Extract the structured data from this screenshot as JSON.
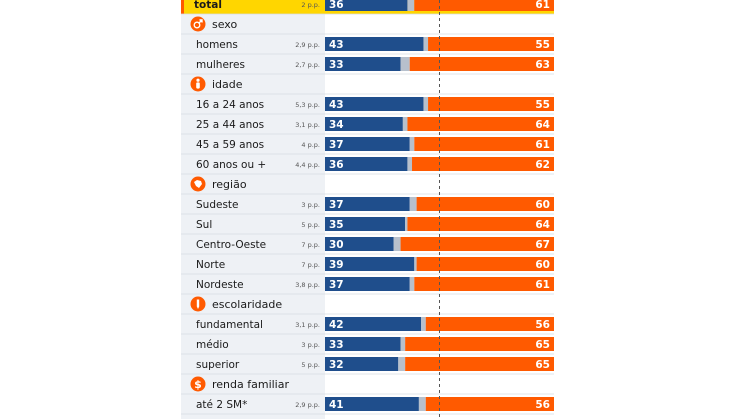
{
  "colors": {
    "left_series": "#1f4e8c",
    "right_series": "#ff5a00",
    "neither": "#b7c0cc",
    "highlight": "#ffd600",
    "icon": "#ff5a00",
    "row_bg": "#eef1f5",
    "plot_bg": "#ffffff"
  },
  "chart_data": {
    "type": "bar",
    "stacked": true,
    "orientation": "horizontal",
    "xlim": [
      0,
      100
    ],
    "reference_line": 50,
    "series_order": [
      "left",
      "neither",
      "right"
    ],
    "rows": [
      {
        "kind": "data",
        "label": "total",
        "margin": "2 p.p.",
        "left": 36,
        "right": 61,
        "highlight": true
      },
      {
        "kind": "header",
        "label": "sexo",
        "icon": "gender-icon"
      },
      {
        "kind": "data",
        "label": "homens",
        "margin": "2,9 p.p.",
        "left": 43,
        "right": 55
      },
      {
        "kind": "data",
        "label": "mulheres",
        "margin": "2,7 p.p.",
        "left": 33,
        "right": 63
      },
      {
        "kind": "header",
        "label": "idade",
        "icon": "person-icon"
      },
      {
        "kind": "data",
        "label": "16 a 24 anos",
        "margin": "5,3 p.p.",
        "left": 43,
        "right": 55
      },
      {
        "kind": "data",
        "label": "25 a 44 anos",
        "margin": "3,1 p.p.",
        "left": 34,
        "right": 64
      },
      {
        "kind": "data",
        "label": "45 a 59 anos",
        "margin": "4 p.p.",
        "left": 37,
        "right": 61
      },
      {
        "kind": "data",
        "label": "60 anos ou +",
        "margin": "4,4 p.p.",
        "left": 36,
        "right": 62
      },
      {
        "kind": "header",
        "label": "região",
        "icon": "map-icon"
      },
      {
        "kind": "data",
        "label": "Sudeste",
        "margin": "3 p.p.",
        "left": 37,
        "right": 60
      },
      {
        "kind": "data",
        "label": "Sul",
        "margin": "5 p.p.",
        "left": 35,
        "right": 64
      },
      {
        "kind": "data",
        "label": "Centro-Oeste",
        "margin": "7 p.p.",
        "left": 30,
        "right": 67
      },
      {
        "kind": "data",
        "label": "Norte",
        "margin": "7 p.p.",
        "left": 39,
        "right": 60
      },
      {
        "kind": "data",
        "label": "Nordeste",
        "margin": "3,8 p.p.",
        "left": 37,
        "right": 61
      },
      {
        "kind": "header",
        "label": "escolaridade",
        "icon": "pencil-icon"
      },
      {
        "kind": "data",
        "label": "fundamental",
        "margin": "3,1 p.p.",
        "left": 42,
        "right": 56
      },
      {
        "kind": "data",
        "label": "médio",
        "margin": "3 p.p.",
        "left": 33,
        "right": 65
      },
      {
        "kind": "data",
        "label": "superior",
        "margin": "5 p.p.",
        "left": 32,
        "right": 65
      },
      {
        "kind": "header",
        "label": "renda familiar",
        "icon": "dollar-icon"
      },
      {
        "kind": "data",
        "label": "até 2 SM*",
        "margin": "2,9 p.p.",
        "left": 41,
        "right": 56
      }
    ]
  }
}
